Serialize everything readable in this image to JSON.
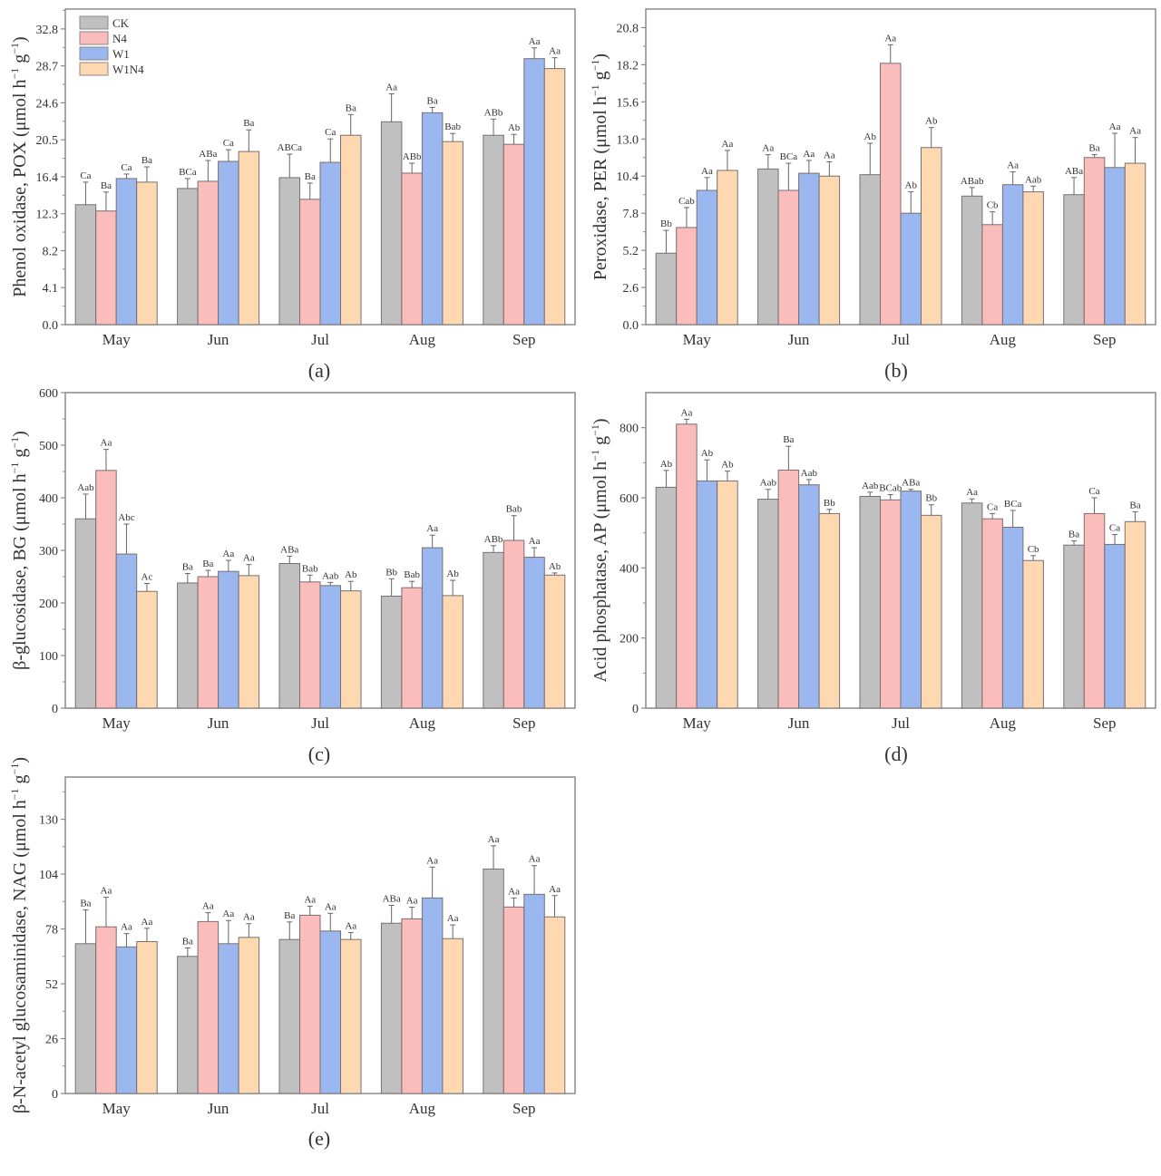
{
  "legend": [
    {
      "name": "CK",
      "color": "#c0c0c0"
    },
    {
      "name": "N4",
      "color": "#fbbcbc"
    },
    {
      "name": "W1",
      "color": "#9ab8ef"
    },
    {
      "name": "W1N4",
      "color": "#fdd8b0"
    }
  ],
  "chart_data": [
    {
      "id": "a",
      "type": "bar",
      "caption": "(a)",
      "ylabel": "Phenol oxidase, POX (μmol h⁻¹ g⁻¹)",
      "ylabel_main": "Phenol oxidase, POX (μmol h",
      "categories": [
        "May",
        "Jun",
        "Jul",
        "Aug",
        "Sep"
      ],
      "ylim": [
        0,
        35.0
      ],
      "yticks": [
        "0.0",
        "4.1",
        "8.2",
        "12.3",
        "16.4",
        "20.5",
        "24.6",
        "28.7",
        "32.8"
      ],
      "ytick_values": [
        0,
        4.1,
        8.2,
        12.3,
        16.4,
        20.5,
        24.6,
        28.7,
        32.8
      ],
      "show_legend": true,
      "series": [
        {
          "name": "CK",
          "values": [
            13.3,
            15.1,
            16.3,
            22.5,
            21.0
          ],
          "errors": [
            2.5,
            1.1,
            2.6,
            3.1,
            1.8
          ],
          "labels": [
            "Ca",
            "BCa",
            "ABCa",
            "Aa",
            "ABb"
          ]
        },
        {
          "name": "N4",
          "values": [
            12.6,
            15.9,
            13.9,
            16.8,
            20.0
          ],
          "errors": [
            2.1,
            2.3,
            1.8,
            1.1,
            1.1
          ],
          "labels": [
            "Ba",
            "ABa",
            "Ba",
            "ABb",
            "Ab"
          ]
        },
        {
          "name": "W1",
          "values": [
            16.2,
            18.1,
            18.0,
            23.5,
            29.5
          ],
          "errors": [
            0.5,
            1.3,
            2.6,
            0.6,
            1.2
          ],
          "labels": [
            "Ca",
            "Ca",
            "Ca",
            "Ba",
            "Aa"
          ]
        },
        {
          "name": "W1N4",
          "values": [
            15.8,
            19.2,
            21.0,
            20.3,
            28.4
          ],
          "errors": [
            1.7,
            2.4,
            2.3,
            0.9,
            1.2
          ],
          "labels": [
            "Ba",
            "Ba",
            "Ba",
            "Bab",
            "Aa"
          ]
        }
      ]
    },
    {
      "id": "b",
      "type": "bar",
      "caption": "(b)",
      "ylabel": "Peroxidase, PER (μmol h⁻¹ g⁻¹)",
      "ylabel_main": "Peroxidase, PER (μmol h",
      "categories": [
        "May",
        "Jun",
        "Jul",
        "Aug",
        "Sep"
      ],
      "ylim": [
        0,
        22.1
      ],
      "yticks": [
        "0.0",
        "2.6",
        "5.2",
        "7.8",
        "10.4",
        "13.0",
        "15.6",
        "18.2",
        "20.8"
      ],
      "ytick_values": [
        0,
        2.6,
        5.2,
        7.8,
        10.4,
        13.0,
        15.6,
        18.2,
        20.8
      ],
      "show_legend": false,
      "series": [
        {
          "name": "CK",
          "values": [
            5.0,
            10.9,
            10.5,
            9.0,
            9.1
          ],
          "errors": [
            1.6,
            1.0,
            2.2,
            0.6,
            1.2
          ],
          "labels": [
            "Bb",
            "Aa",
            "Ab",
            "ABab",
            "ABa"
          ]
        },
        {
          "name": "N4",
          "values": [
            6.8,
            9.4,
            18.3,
            7.0,
            11.7
          ],
          "errors": [
            1.4,
            1.9,
            1.3,
            0.9,
            0.2
          ],
          "labels": [
            "Cab",
            "BCa",
            "Aa",
            "Cb",
            "Ba"
          ]
        },
        {
          "name": "W1",
          "values": [
            9.4,
            10.6,
            7.8,
            9.8,
            11.0
          ],
          "errors": [
            0.9,
            0.9,
            1.5,
            0.9,
            2.4
          ],
          "labels": [
            "Aa",
            "Aa",
            "Ab",
            "Aa",
            "Aa"
          ]
        },
        {
          "name": "W1N4",
          "values": [
            10.8,
            10.4,
            12.4,
            9.3,
            11.3
          ],
          "errors": [
            1.4,
            1.0,
            1.4,
            0.4,
            1.8
          ],
          "labels": [
            "Aa",
            "Aa",
            "Ab",
            "Aab",
            "Aa"
          ]
        }
      ]
    },
    {
      "id": "c",
      "type": "bar",
      "caption": "(c)",
      "ylabel": "β-glucosidase, BG (μmol h⁻¹ g⁻¹)",
      "ylabel_main": "β-glucosidase, BG (μmol h",
      "categories": [
        "May",
        "Jun",
        "Jul",
        "Aug",
        "Sep"
      ],
      "ylim": [
        0,
        600
      ],
      "yticks": [
        "0",
        "100",
        "200",
        "300",
        "400",
        "500",
        "600"
      ],
      "ytick_values": [
        0,
        100,
        200,
        300,
        400,
        500,
        600
      ],
      "show_legend": false,
      "series": [
        {
          "name": "CK",
          "values": [
            360,
            238,
            275,
            213,
            296
          ],
          "errors": [
            47,
            18,
            14,
            33,
            13
          ],
          "labels": [
            "Aab",
            "Ba",
            "ABa",
            "Bb",
            "ABb"
          ]
        },
        {
          "name": "N4",
          "values": [
            452,
            250,
            240,
            229,
            319
          ],
          "errors": [
            40,
            12,
            13,
            12,
            47
          ],
          "labels": [
            "Aa",
            "Ba",
            "Bab",
            "Bab",
            "Bab"
          ]
        },
        {
          "name": "W1",
          "values": [
            293,
            260,
            233,
            305,
            287
          ],
          "errors": [
            57,
            21,
            6,
            24,
            18
          ],
          "labels": [
            "Abc",
            "Aa",
            "Aab",
            "Aa",
            "Aa"
          ]
        },
        {
          "name": "W1N4",
          "values": [
            222,
            252,
            223,
            214,
            253
          ],
          "errors": [
            15,
            21,
            18,
            29,
            4
          ],
          "labels": [
            "Ac",
            "Aa",
            "Ab",
            "Ab",
            "Ab"
          ]
        }
      ]
    },
    {
      "id": "d",
      "type": "bar",
      "caption": "(d)",
      "ylabel": "Acid phosphatase, AP (μmol h⁻¹ g⁻¹)",
      "ylabel_main": "Acid phosphatase, AP (μmol h",
      "categories": [
        "May",
        "Jun",
        "Jul",
        "Aug",
        "Sep"
      ],
      "ylim": [
        0,
        900
      ],
      "yticks": [
        "0",
        "200",
        "400",
        "600",
        "800"
      ],
      "ytick_values": [
        0,
        200,
        400,
        600,
        800
      ],
      "show_legend": false,
      "series": [
        {
          "name": "CK",
          "values": [
            630,
            596,
            604,
            585,
            465
          ],
          "errors": [
            48,
            28,
            12,
            12,
            12
          ],
          "labels": [
            "Ab",
            "Aab",
            "Aab",
            "Aa",
            "Ba"
          ]
        },
        {
          "name": "N4",
          "values": [
            810,
            679,
            594,
            540,
            555
          ],
          "errors": [
            14,
            68,
            15,
            15,
            45
          ],
          "labels": [
            "Aa",
            "Ba",
            "BCab",
            "Ca",
            "Ca"
          ]
        },
        {
          "name": "W1",
          "values": [
            648,
            637,
            619,
            516,
            467
          ],
          "errors": [
            60,
            15,
            5,
            48,
            28
          ],
          "labels": [
            "Ab",
            "Aab",
            "ABa",
            "BCa",
            "Ca"
          ]
        },
        {
          "name": "W1N4",
          "values": [
            648,
            555,
            550,
            421,
            532
          ],
          "errors": [
            28,
            12,
            30,
            14,
            28
          ],
          "labels": [
            "Ab",
            "Bb",
            "Bb",
            "Cb",
            "Ba"
          ]
        }
      ]
    },
    {
      "id": "e",
      "type": "bar",
      "caption": "(e)",
      "ylabel": "β-N-acetyl glucosaminidase, NAG (μmol h⁻¹ g⁻¹)",
      "ylabel_main": "β-N-acetyl glucosaminidase, NAG (μmol h",
      "categories": [
        "May",
        "Jun",
        "Jul",
        "Aug",
        "Sep"
      ],
      "ylim": [
        0,
        150
      ],
      "yticks": [
        "0",
        "26",
        "52",
        "78",
        "104",
        "130"
      ],
      "ytick_values": [
        0,
        26,
        52,
        78,
        104,
        130
      ],
      "show_legend": false,
      "series": [
        {
          "name": "CK",
          "values": [
            71,
            65,
            73,
            80.7,
            106.4
          ],
          "errors": [
            16,
            4,
            8.3,
            8.5,
            11
          ],
          "labels": [
            "Ba",
            "Ba",
            "Ba",
            "ABa",
            "Aa"
          ]
        },
        {
          "name": "N4",
          "values": [
            79,
            81.5,
            84.5,
            82.8,
            88.4
          ],
          "errors": [
            14,
            4.2,
            4.3,
            5.5,
            4.3
          ],
          "labels": [
            "Aa",
            "Aa",
            "Aa",
            "Aa",
            "Aa"
          ]
        },
        {
          "name": "W1",
          "values": [
            69.5,
            71,
            77,
            92.7,
            94.4
          ],
          "errors": [
            6.3,
            11,
            8.4,
            14.6,
            13.6
          ],
          "labels": [
            "Aa",
            "Aa",
            "Aa",
            "Aa",
            "Aa"
          ]
        },
        {
          "name": "W1N4",
          "values": [
            72,
            74,
            73,
            73.4,
            83.7
          ],
          "errors": [
            6.3,
            6.5,
            3.3,
            6.5,
            10.1
          ],
          "labels": [
            "Aa",
            "Aa",
            "Aa",
            "Aa",
            "Aa"
          ]
        }
      ]
    }
  ]
}
